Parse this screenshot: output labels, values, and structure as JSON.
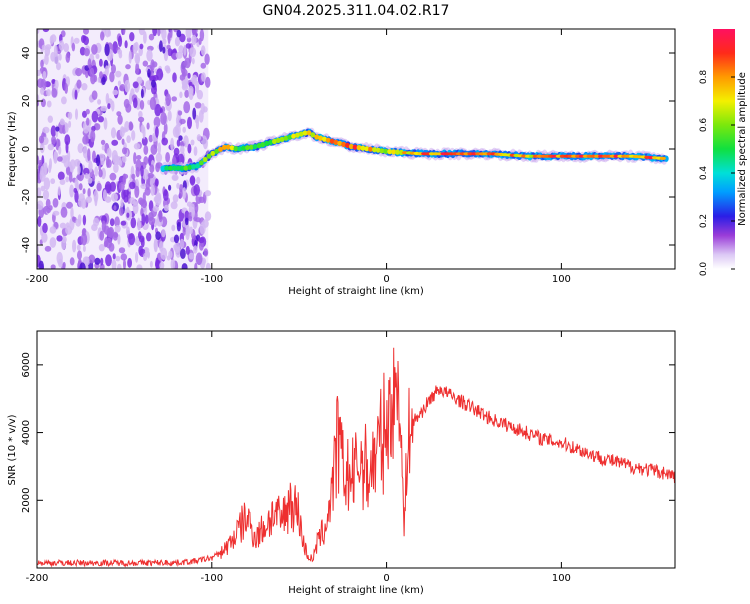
{
  "figure_title": "GN04.2025.311.04.02.R17",
  "colorbar": {
    "label": "Normalized spectral amplitude",
    "ticks": [
      "0.0",
      "0.2",
      "0.4",
      "0.6",
      "0.8"
    ],
    "tick_values": [
      0.0,
      0.2,
      0.4,
      0.6,
      0.8
    ],
    "range": [
      0,
      1
    ]
  },
  "chart_data": [
    {
      "type": "heatmap",
      "title": "GN04.2025.311.04.02.R17",
      "xlabel": "Height of straight line (km)",
      "ylabel": "Frequency (Hz)",
      "xlim": [
        -200,
        165
      ],
      "ylim": [
        -50,
        50
      ],
      "xticks": [
        -200,
        -100,
        0,
        100
      ],
      "xtick_labels": [
        "-200",
        "-100",
        "0",
        "100"
      ],
      "yticks": [
        -40,
        -20,
        0,
        20,
        40
      ],
      "ytick_labels": [
        "-40",
        "-20",
        "0",
        "20",
        "40"
      ],
      "noise_region_x": [
        -200,
        -102
      ],
      "signal_track": {
        "x": [
          -128,
          -115,
          -108,
          -100,
          -92,
          -85,
          -75,
          -65,
          -55,
          -45,
          -40,
          -30,
          -20,
          -10,
          0,
          20,
          40,
          60,
          80,
          100,
          120,
          140,
          160
        ],
        "freq": [
          -8,
          -8,
          -7,
          -2,
          1,
          0,
          1,
          3,
          5,
          7,
          5,
          3,
          1,
          0,
          -1,
          -2,
          -2,
          -2,
          -3,
          -3,
          -3,
          -3,
          -4
        ],
        "amplitude": [
          0.45,
          0.6,
          0.55,
          0.7,
          0.8,
          0.6,
          0.55,
          0.65,
          0.7,
          0.75,
          0.8,
          0.85,
          0.9,
          0.85,
          0.7,
          0.9,
          0.95,
          0.9,
          0.8,
          0.95,
          0.9,
          0.9,
          0.95
        ]
      }
    },
    {
      "type": "line",
      "xlabel": "Height of straight line (km)",
      "ylabel": "SNR (10 * v/v)",
      "xlim": [
        -200,
        165
      ],
      "ylim": [
        0,
        7000
      ],
      "xticks": [
        -200,
        -100,
        0,
        100
      ],
      "xtick_labels": [
        "-200",
        "-100",
        "0",
        "100"
      ],
      "yticks": [
        2000,
        4000,
        6000
      ],
      "ytick_labels": [
        "2000",
        "4000",
        "6000"
      ],
      "color": "#ee3030",
      "series": [
        {
          "name": "SNR",
          "x": [
            -200,
            -180,
            -160,
            -140,
            -120,
            -110,
            -100,
            -95,
            -90,
            -85,
            -80,
            -75,
            -70,
            -65,
            -60,
            -55,
            -50,
            -48,
            -45,
            -42,
            -40,
            -35,
            -30,
            -28,
            -25,
            -20,
            -15,
            -10,
            -5,
            0,
            3,
            5,
            7,
            9,
            10,
            12,
            15,
            20,
            25,
            30,
            40,
            50,
            60,
            70,
            80,
            90,
            100,
            110,
            120,
            130,
            140,
            150,
            160,
            165
          ],
          "y": [
            150,
            150,
            150,
            150,
            160,
            200,
            300,
            450,
            700,
            1100,
            1500,
            900,
            1200,
            1600,
            1400,
            2000,
            1600,
            800,
            350,
            250,
            700,
            1200,
            2700,
            3800,
            2900,
            2600,
            3200,
            2800,
            3500,
            4200,
            4800,
            5000,
            6000,
            2800,
            1000,
            3900,
            4300,
            4600,
            5000,
            5300,
            5000,
            4700,
            4400,
            4200,
            4000,
            3800,
            3700,
            3500,
            3300,
            3150,
            3000,
            2900,
            2800,
            2700
          ]
        }
      ]
    }
  ]
}
